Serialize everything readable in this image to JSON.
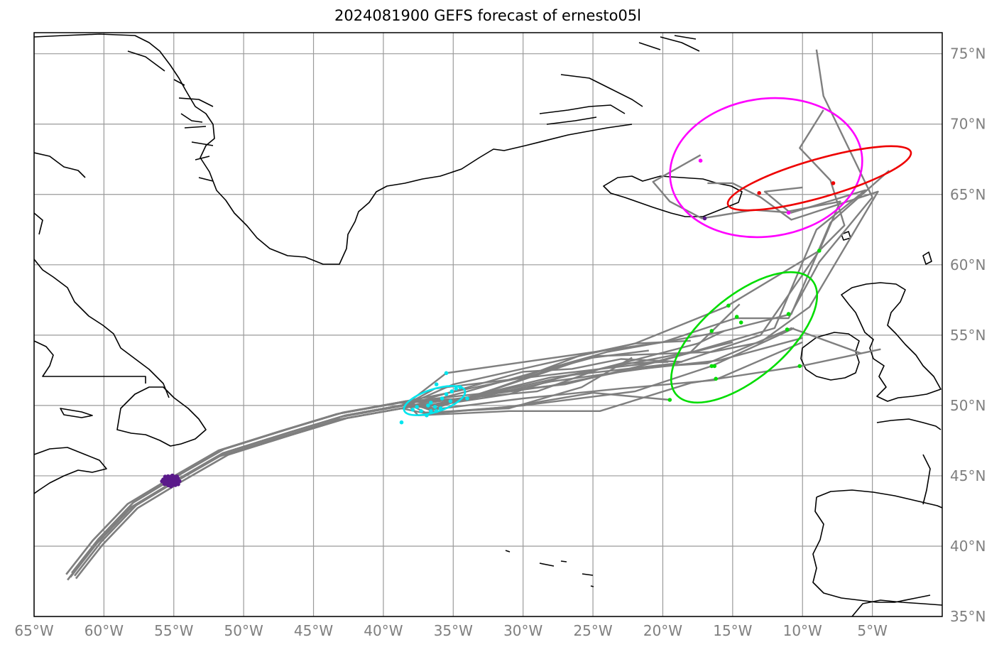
{
  "title": "2024081900 GEFS forecast of ernesto05l",
  "map": {
    "lon_range": [
      -65,
      0
    ],
    "lat_range": [
      35,
      76.5
    ],
    "lon_ticks": [
      {
        "value": -65,
        "label": "65°W"
      },
      {
        "value": -60,
        "label": "60°W"
      },
      {
        "value": -55,
        "label": "55°W"
      },
      {
        "value": -50,
        "label": "50°W"
      },
      {
        "value": -45,
        "label": "45°W"
      },
      {
        "value": -40,
        "label": "40°W"
      },
      {
        "value": -35,
        "label": "35°W"
      },
      {
        "value": -30,
        "label": "30°W"
      },
      {
        "value": -25,
        "label": "25°W"
      },
      {
        "value": -20,
        "label": "20°W"
      },
      {
        "value": -15,
        "label": "15°W"
      },
      {
        "value": -10,
        "label": "10°W"
      },
      {
        "value": -5,
        "label": "5°W"
      }
    ],
    "lat_ticks": [
      {
        "value": 35,
        "label": "35°N"
      },
      {
        "value": 40,
        "label": "40°N"
      },
      {
        "value": 45,
        "label": "45°N"
      },
      {
        "value": 50,
        "label": "50°N"
      },
      {
        "value": 55,
        "label": "55°N"
      },
      {
        "value": 60,
        "label": "60°N"
      },
      {
        "value": 65,
        "label": "65°N"
      },
      {
        "value": 70,
        "label": "70°N"
      },
      {
        "value": 75,
        "label": "75°N"
      }
    ],
    "colors": {
      "tracks": "#7f7f7f",
      "coastline": "#000000",
      "initial_positions": "#5a1a8a",
      "forecast_day2": "#00e5ee",
      "forecast_day4": "#00dd00",
      "forecast_day5": "#ff00ff",
      "forecast_day5_alt": "#ee0000"
    }
  }
}
